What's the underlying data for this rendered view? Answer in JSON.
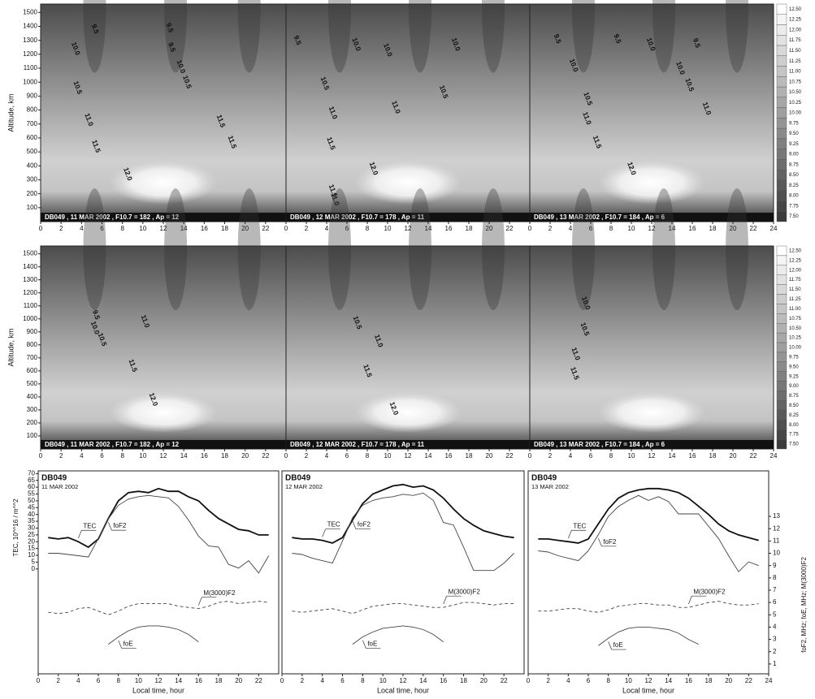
{
  "chart_data": [
    {
      "type": "contour",
      "ylabel": "Altitude, km",
      "strip": "DB049 , 11 MAR 2002 , F10.7 = 182 , Ap = 12",
      "xlim": [
        0,
        24
      ],
      "xticks": [
        0,
        2,
        4,
        6,
        8,
        10,
        12,
        14,
        16,
        18,
        20,
        22
      ],
      "ylim": [
        0,
        1560
      ],
      "yticks": [
        100,
        200,
        300,
        400,
        500,
        600,
        700,
        800,
        900,
        1000,
        1100,
        1200,
        1300,
        1400,
        1500
      ],
      "contour_labels": [
        {
          "label": "9.5",
          "x": 5.3,
          "alt": 1380
        },
        {
          "label": "10.0",
          "x": 3.4,
          "alt": 1240
        },
        {
          "label": "10.5",
          "x": 3.6,
          "alt": 960
        },
        {
          "label": "11.0",
          "x": 4.7,
          "alt": 730
        },
        {
          "label": "11.5",
          "x": 5.4,
          "alt": 540
        },
        {
          "label": "12.0",
          "x": 8.5,
          "alt": 340
        },
        {
          "label": "9.5",
          "x": 12.6,
          "alt": 1390
        },
        {
          "label": "9.5",
          "x": 12.8,
          "alt": 1250
        },
        {
          "label": "10.0",
          "x": 13.7,
          "alt": 1110
        },
        {
          "label": "10.5",
          "x": 14.3,
          "alt": 1000
        },
        {
          "label": "11.5",
          "x": 17.6,
          "alt": 720
        },
        {
          "label": "11.5",
          "x": 18.7,
          "alt": 570
        }
      ]
    },
    {
      "type": "contour",
      "strip": "DB049 , 12 MAR 2002 , F10.7 = 178 , Ap = 11",
      "xlim": [
        0,
        24
      ],
      "xticks": [
        0,
        2,
        4,
        6,
        8,
        10,
        12,
        14,
        16,
        18,
        20,
        22
      ],
      "ylim": [
        0,
        1560
      ],
      "contour_labels": [
        {
          "label": "9.5",
          "x": 1.1,
          "alt": 1300
        },
        {
          "label": "10.0",
          "x": 6.9,
          "alt": 1270
        },
        {
          "label": "10.0",
          "x": 10,
          "alt": 1230
        },
        {
          "label": "10.0",
          "x": 16.7,
          "alt": 1270
        },
        {
          "label": "10.5",
          "x": 3.8,
          "alt": 990
        },
        {
          "label": "10.5",
          "x": 15.5,
          "alt": 930
        },
        {
          "label": "11.0",
          "x": 4.6,
          "alt": 780
        },
        {
          "label": "11.0",
          "x": 10.8,
          "alt": 820
        },
        {
          "label": "11.5",
          "x": 4.4,
          "alt": 560
        },
        {
          "label": "12.0",
          "x": 8.6,
          "alt": 380
        },
        {
          "label": "11.5",
          "x": 4.6,
          "alt": 220
        },
        {
          "label": "11.0",
          "x": 4.8,
          "alt": 160
        }
      ]
    },
    {
      "type": "contour",
      "strip": "DB049 , 13 MAR 2002 , F10.7 = 184 , Ap = 6",
      "xlim": [
        0,
        24
      ],
      "xticks": [
        0,
        2,
        4,
        6,
        8,
        10,
        12,
        14,
        16,
        18,
        20,
        22,
        24
      ],
      "ylim": [
        0,
        1560
      ],
      "contour_labels": [
        {
          "label": "9.5",
          "x": 2.7,
          "alt": 1310
        },
        {
          "label": "10.0",
          "x": 4.3,
          "alt": 1120
        },
        {
          "label": "9.5",
          "x": 8.6,
          "alt": 1310
        },
        {
          "label": "10.0",
          "x": 11.9,
          "alt": 1270
        },
        {
          "label": "10.0",
          "x": 14.8,
          "alt": 1100
        },
        {
          "label": "10.5",
          "x": 15.7,
          "alt": 980
        },
        {
          "label": "9.5",
          "x": 16.4,
          "alt": 1280
        },
        {
          "label": "10.5",
          "x": 5.7,
          "alt": 880
        },
        {
          "label": "11.0",
          "x": 5.6,
          "alt": 740
        },
        {
          "label": "11.0",
          "x": 17.4,
          "alt": 810
        },
        {
          "label": "11.5",
          "x": 6.6,
          "alt": 570
        },
        {
          "label": "12.0",
          "x": 10,
          "alt": 380
        }
      ],
      "colorbar": [
        {
          "value": 12.5,
          "label": "12.50"
        },
        {
          "value": 12.25,
          "label": "12.25"
        },
        {
          "value": 12,
          "label": "12.00"
        },
        {
          "value": 11.75,
          "label": "11.75"
        },
        {
          "value": 11.5,
          "label": "11.50"
        },
        {
          "value": 11.25,
          "label": "11.25"
        },
        {
          "value": 11,
          "label": "11.00"
        },
        {
          "value": 10.75,
          "label": "10.75"
        },
        {
          "value": 10.5,
          "label": "10.50"
        },
        {
          "value": 10.25,
          "label": "10.25"
        },
        {
          "value": 10,
          "label": "10.00"
        },
        {
          "value": 9.75,
          "label": "9.75"
        },
        {
          "value": 9.5,
          "label": "9.50"
        },
        {
          "value": 9.25,
          "label": "9.25"
        },
        {
          "value": 9,
          "label": "9.00"
        },
        {
          "value": 8.75,
          "label": "8.75"
        },
        {
          "value": 8.5,
          "label": "8.50"
        },
        {
          "value": 8.25,
          "label": "8.25"
        },
        {
          "value": 8,
          "label": "8.00"
        },
        {
          "value": 7.75,
          "label": "7.75"
        },
        {
          "value": 7.5,
          "label": "7.50"
        }
      ]
    },
    {
      "type": "contour",
      "ylabel": "Altitude, km",
      "strip": "DB049 , 11 MAR 2002 , F10.7 = 182 , Ap = 12",
      "xlim": [
        0,
        24
      ],
      "xticks": [
        0,
        2,
        4,
        6,
        8,
        10,
        12,
        14,
        16,
        18,
        20,
        22
      ],
      "ylim": [
        0,
        1560
      ],
      "yticks": [
        100,
        200,
        300,
        400,
        500,
        600,
        700,
        800,
        900,
        1000,
        1100,
        1200,
        1300,
        1400,
        1500
      ],
      "contour_labels": [
        {
          "label": "9.5",
          "x": 5.4,
          "alt": 1030
        },
        {
          "label": "10.0",
          "x": 5.3,
          "alt": 930
        },
        {
          "label": "10.5",
          "x": 6,
          "alt": 840
        },
        {
          "label": "11.0",
          "x": 10.2,
          "alt": 980
        },
        {
          "label": "11.5",
          "x": 9,
          "alt": 640
        },
        {
          "label": "12.0",
          "x": 11,
          "alt": 380
        }
      ]
    },
    {
      "type": "contour",
      "strip": "DB049 , 12 MAR 2002 , F10.7 = 178 , Ap = 11",
      "xlim": [
        0,
        24
      ],
      "xticks": [
        0,
        2,
        4,
        6,
        8,
        10,
        12,
        14,
        16,
        18,
        20,
        22
      ],
      "ylim": [
        0,
        1560
      ],
      "contour_labels": [
        {
          "label": "10.5",
          "x": 7,
          "alt": 970
        },
        {
          "label": "11.0",
          "x": 9.1,
          "alt": 830
        },
        {
          "label": "11.5",
          "x": 8,
          "alt": 600
        },
        {
          "label": "12.0",
          "x": 10.6,
          "alt": 310
        }
      ]
    },
    {
      "type": "contour",
      "strip": "DB049 , 13 MAR 2002 , F10.7 = 184 , Ap = 6",
      "xlim": [
        0,
        24
      ],
      "xticks": [
        0,
        2,
        4,
        6,
        8,
        10,
        12,
        14,
        16,
        18,
        20,
        22,
        24
      ],
      "ylim": [
        0,
        1560
      ],
      "contour_labels": [
        {
          "label": "10.0",
          "x": 5.5,
          "alt": 1120
        },
        {
          "label": "10.5",
          "x": 5.4,
          "alt": 920
        },
        {
          "label": "11.0",
          "x": 4.5,
          "alt": 730
        },
        {
          "label": "11.5",
          "x": 4.4,
          "alt": 580
        }
      ],
      "colorbar": [
        {
          "value": 12.5,
          "label": "12.50"
        },
        {
          "value": 12.25,
          "label": "12.25"
        },
        {
          "value": 12,
          "label": "12.00"
        },
        {
          "value": 11.75,
          "label": "11.75"
        },
        {
          "value": 11.5,
          "label": "11.50"
        },
        {
          "value": 11.25,
          "label": "11.25"
        },
        {
          "value": 11,
          "label": "11.00"
        },
        {
          "value": 10.75,
          "label": "10.75"
        },
        {
          "value": 10.5,
          "label": "10.50"
        },
        {
          "value": 10.25,
          "label": "10.25"
        },
        {
          "value": 10,
          "label": "10.00"
        },
        {
          "value": 9.75,
          "label": "9.75"
        },
        {
          "value": 9.5,
          "label": "9.50"
        },
        {
          "value": 9.25,
          "label": "9.25"
        },
        {
          "value": 9,
          "label": "9.00"
        },
        {
          "value": 8.75,
          "label": "8.75"
        },
        {
          "value": 8.5,
          "label": "8.50"
        },
        {
          "value": 8.25,
          "label": "8.25"
        },
        {
          "value": 8,
          "label": "8.00"
        },
        {
          "value": 7.75,
          "label": "7.75"
        },
        {
          "value": 7.5,
          "label": "7.50"
        }
      ]
    },
    {
      "type": "line",
      "title": "DB049",
      "subtitle": "11 MAR 2002",
      "xlabel": "Local time, hour",
      "ylabel": "TEC, 10^^16 / m^^2",
      "xlim": [
        0,
        24
      ],
      "xticks": [
        0,
        2,
        4,
        6,
        8,
        10,
        12,
        14,
        16,
        18,
        20,
        22
      ],
      "ylim": [
        -77,
        72
      ],
      "yticks": [
        0,
        5,
        10,
        15,
        20,
        25,
        30,
        35,
        40,
        45,
        50,
        55,
        60,
        65,
        70
      ],
      "y2lim": [
        0.2,
        16.7
      ],
      "x": [
        1,
        2,
        3,
        4,
        5,
        6,
        7,
        8,
        9,
        10,
        11,
        12,
        13,
        14,
        15,
        16,
        17,
        18,
        19,
        20,
        21,
        22,
        23
      ],
      "series": [
        {
          "name": "TEC",
          "color": "#111111",
          "values": [
            23,
            22,
            23,
            20,
            16,
            22,
            37,
            50,
            56,
            57,
            56,
            59,
            57,
            57,
            53,
            50,
            43,
            37,
            33,
            29,
            28,
            25,
            25
          ]
        },
        {
          "name": "foF2",
          "color": "#444444",
          "axis": "y2",
          "values": [
            10.0,
            10.0,
            9.9,
            9.8,
            9.7,
            11.2,
            12.8,
            13.9,
            14.4,
            14.6,
            14.7,
            14.6,
            14.5,
            13.8,
            12.7,
            11.4,
            10.6,
            10.5,
            9.1,
            8.8,
            9.4,
            8.4,
            9.8
          ]
        },
        {
          "name": "M(3000)F2",
          "color": "#444444",
          "axis": "y2",
          "dash": true,
          "values": [
            5.2,
            5.1,
            5.2,
            5.5,
            5.6,
            5.3,
            5.0,
            5.3,
            5.7,
            5.9,
            5.9,
            5.9,
            5.9,
            5.7,
            5.6,
            5.5,
            5.7,
            6.0,
            6.1,
            5.9,
            6.0,
            6.1,
            6.0
          ]
        },
        {
          "name": "foE",
          "color": "#444444",
          "axis": "y2",
          "values": [
            null,
            null,
            null,
            null,
            null,
            null,
            2.6,
            3.2,
            3.7,
            4.0,
            4.1,
            4.1,
            4.0,
            3.8,
            3.4,
            2.8,
            null,
            null,
            null,
            null,
            null,
            null,
            null
          ]
        }
      ]
    },
    {
      "type": "line",
      "title": "DB049",
      "subtitle": "12 MAR 2002",
      "xlabel": "Local time, hour",
      "xlim": [
        0,
        24
      ],
      "xticks": [
        0,
        2,
        4,
        6,
        8,
        10,
        12,
        14,
        16,
        18,
        20,
        22
      ],
      "ylim": [
        -77,
        72
      ],
      "y2lim": [
        0.2,
        16.7
      ],
      "x": [
        1,
        2,
        3,
        4,
        5,
        6,
        7,
        8,
        9,
        10,
        11,
        12,
        13,
        14,
        15,
        16,
        17,
        18,
        19,
        20,
        21,
        22,
        23
      ],
      "series": [
        {
          "name": "TEC",
          "color": "#111111",
          "values": [
            23,
            22,
            22,
            21,
            19,
            23,
            36,
            48,
            55,
            58,
            61,
            62,
            60,
            61,
            58,
            52,
            44,
            37,
            32,
            28,
            26,
            24,
            23
          ]
        },
        {
          "name": "foF2",
          "color": "#444444",
          "axis": "y2",
          "values": [
            10.0,
            9.9,
            9.6,
            9.4,
            9.2,
            11.0,
            12.9,
            13.9,
            14.3,
            14.5,
            14.6,
            14.8,
            14.7,
            14.9,
            14.3,
            12.5,
            12.3,
            10.5,
            8.6,
            8.6,
            8.6,
            9.2,
            10.0
          ]
        },
        {
          "name": "M(3000)F2",
          "color": "#444444",
          "axis": "y2",
          "dash": true,
          "values": [
            5.3,
            5.2,
            5.3,
            5.4,
            5.5,
            5.3,
            5.1,
            5.4,
            5.7,
            5.8,
            5.9,
            5.9,
            5.8,
            5.7,
            5.6,
            5.6,
            5.8,
            6.0,
            6.0,
            5.9,
            5.8,
            5.9,
            5.9
          ]
        },
        {
          "name": "foE",
          "color": "#444444",
          "axis": "y2",
          "values": [
            null,
            null,
            null,
            null,
            null,
            null,
            2.6,
            3.2,
            3.6,
            3.9,
            4.0,
            4.1,
            4.0,
            3.8,
            3.4,
            2.8,
            null,
            null,
            null,
            null,
            null,
            null,
            null
          ]
        }
      ]
    },
    {
      "type": "line",
      "title": "DB049",
      "subtitle": "13 MAR 2002",
      "xlabel": "Local time, hour",
      "y2label": "foF2, MHz;  foE, MHz;  M(3000)F2",
      "xlim": [
        0,
        24
      ],
      "xticks": [
        0,
        2,
        4,
        6,
        8,
        10,
        12,
        14,
        16,
        18,
        20,
        22,
        24
      ],
      "ylim": [
        -77,
        72
      ],
      "y2lim": [
        0.2,
        16.7
      ],
      "y2ticks": [
        1,
        2,
        3,
        4,
        5,
        6,
        7,
        8,
        9,
        10,
        11,
        12,
        13
      ],
      "x": [
        1,
        2,
        3,
        4,
        5,
        6,
        7,
        8,
        9,
        10,
        11,
        12,
        13,
        14,
        15,
        16,
        17,
        18,
        19,
        20,
        21,
        22,
        23
      ],
      "series": [
        {
          "name": "TEC",
          "color": "#111111",
          "values": [
            22,
            22,
            21,
            20,
            19,
            22,
            33,
            44,
            52,
            56,
            58,
            59,
            59,
            58,
            56,
            52,
            46,
            40,
            33,
            28,
            25,
            23,
            21
          ]
        },
        {
          "name": "foF2",
          "color": "#444444",
          "axis": "y2",
          "values": [
            10.2,
            10.1,
            9.8,
            9.6,
            9.4,
            10.2,
            11.5,
            13.0,
            13.8,
            14.3,
            14.7,
            14.3,
            14.6,
            14.2,
            13.2,
            13.2,
            13.2,
            12.2,
            11.2,
            9.8,
            8.5,
            9.3,
            9.0
          ]
        },
        {
          "name": "M(3000)F2",
          "color": "#444444",
          "axis": "y2",
          "dash": true,
          "values": [
            5.3,
            5.3,
            5.4,
            5.5,
            5.5,
            5.3,
            5.2,
            5.4,
            5.7,
            5.8,
            5.9,
            5.9,
            5.8,
            5.8,
            5.6,
            5.6,
            5.8,
            6.0,
            6.1,
            5.9,
            5.8,
            5.8,
            5.9
          ]
        },
        {
          "name": "foE",
          "color": "#444444",
          "axis": "y2",
          "values": [
            null,
            null,
            null,
            null,
            null,
            null,
            2.5,
            3.1,
            3.6,
            3.9,
            4.0,
            4.0,
            3.9,
            3.8,
            3.5,
            3.0,
            2.6,
            null,
            null,
            null,
            null,
            null,
            null
          ]
        }
      ]
    }
  ]
}
